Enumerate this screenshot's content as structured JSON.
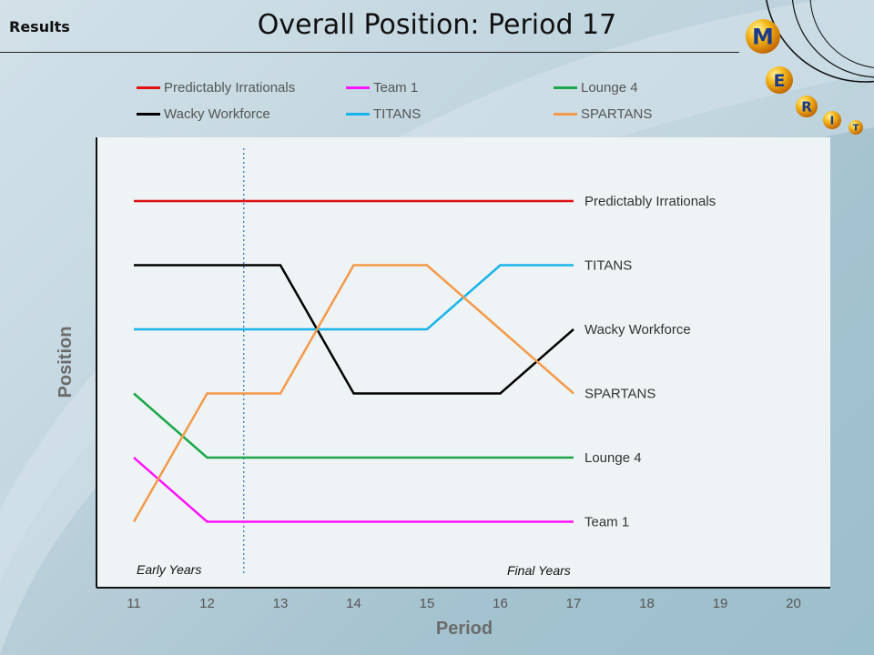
{
  "header": {
    "section_label": "Results",
    "title": "Overall Position: Period 17"
  },
  "logo": {
    "letters": [
      "M",
      "E",
      "R",
      "I",
      "T"
    ]
  },
  "chart_data": {
    "type": "line",
    "title": "Overall Position: Period 17",
    "xlabel": "Period",
    "ylabel": "Position",
    "x_ticks": [
      11,
      12,
      13,
      14,
      15,
      16,
      17,
      18,
      19,
      20
    ],
    "xlim": [
      11,
      20
    ],
    "ylim": [
      6,
      1
    ],
    "grid": false,
    "legend_placement": "top",
    "x": [
      11,
      12,
      13,
      14,
      15,
      16,
      17
    ],
    "series": [
      {
        "name": "Predictably Irrationals",
        "color": "#e01010",
        "values": [
          1,
          1,
          1,
          1,
          1,
          1,
          1
        ]
      },
      {
        "name": "Team 1",
        "color": "#ff14ff",
        "values": [
          5,
          6,
          6,
          6,
          6,
          6,
          6
        ]
      },
      {
        "name": "Lounge 4",
        "color": "#1aa84a",
        "values": [
          4,
          5,
          5,
          5,
          5,
          5,
          5
        ]
      },
      {
        "name": "Wacky Workforce",
        "color": "#000000",
        "values": [
          2,
          2,
          2,
          4,
          4,
          4,
          3
        ]
      },
      {
        "name": "TITANS",
        "color": "#18b4ea",
        "values": [
          3,
          3,
          3,
          3,
          3,
          2,
          2
        ]
      },
      {
        "name": "SPARTANS",
        "color": "#f59a4a",
        "values": [
          6,
          4,
          4,
          2,
          2,
          3,
          4
        ]
      }
    ],
    "end_labels": [
      {
        "text": "Predictably Irrationals",
        "position": 1
      },
      {
        "text": "TITANS",
        "position": 2
      },
      {
        "text": "Wacky Workforce",
        "position": 3
      },
      {
        "text": "SPARTANS",
        "position": 4
      },
      {
        "text": "Lounge 4",
        "position": 5
      },
      {
        "text": "Team 1",
        "position": 6
      }
    ],
    "divider_at_period": 12.5,
    "annotations": {
      "early": "Early Years",
      "final": "Final Years"
    }
  }
}
